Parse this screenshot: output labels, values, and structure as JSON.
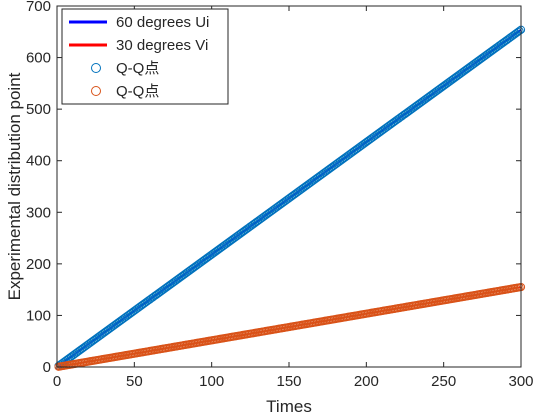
{
  "chart_data": {
    "type": "scatter",
    "title": "",
    "xlabel": "Times",
    "ylabel": "Experimental distribution point",
    "xlim": [
      0,
      300
    ],
    "ylim": [
      0,
      700
    ],
    "xticks": [
      0,
      50,
      100,
      150,
      200,
      250,
      300
    ],
    "yticks": [
      0,
      100,
      200,
      300,
      400,
      500,
      600,
      700
    ],
    "grid": false,
    "legend_position": "top-left",
    "x": {
      "start": 1,
      "end": 300,
      "step": 1
    },
    "series": [
      {
        "name": "60 degrees Ui",
        "kind": "line",
        "color": "#0000ff",
        "y_start": 2.2,
        "y_end": 654
      },
      {
        "name": "30 degrees Vi",
        "kind": "line",
        "color": "#ff0000",
        "y_start": 0.5,
        "y_end": 155
      },
      {
        "name": "Q-Q点",
        "kind": "markers",
        "marker": "circle-open",
        "color": "#0072bd",
        "y_start": 2.2,
        "y_end": 654
      },
      {
        "name": "Q-Q点",
        "kind": "markers",
        "marker": "circle-open",
        "color": "#d95319",
        "y_start": 0.5,
        "y_end": 155
      }
    ]
  }
}
